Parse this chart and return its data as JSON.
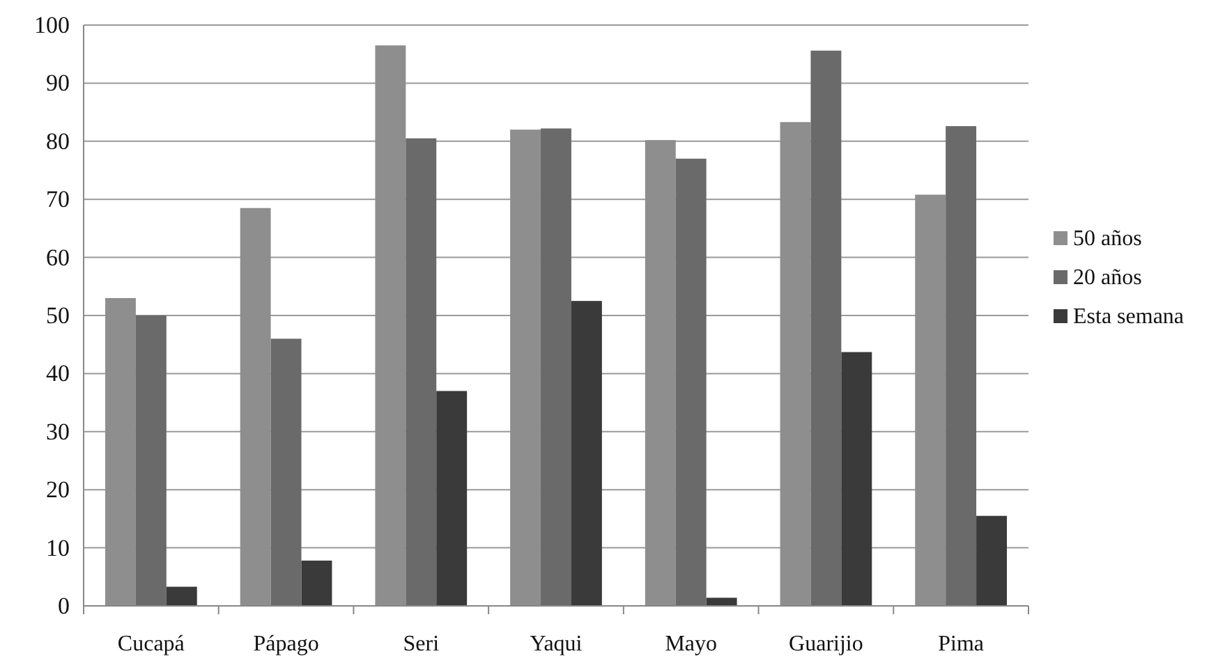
{
  "chart_data": {
    "type": "bar",
    "categories": [
      "Cucapá",
      "Pápago",
      "Seri",
      "Yaqui",
      "Mayo",
      "Guarijio",
      "Pima"
    ],
    "series": [
      {
        "name": "50 años",
        "color": "#8e8e8e",
        "values": [
          53,
          68.5,
          96.5,
          82,
          80.2,
          83.3,
          70.8
        ]
      },
      {
        "name": "20 años",
        "color": "#6a6a6a",
        "values": [
          50,
          46,
          80.5,
          82.2,
          77,
          95.6,
          82.6
        ]
      },
      {
        "name": "Esta semana",
        "color": "#3a3a3a",
        "values": [
          3.3,
          7.8,
          37,
          52.5,
          1.4,
          43.7,
          15.5
        ]
      }
    ],
    "ylim": [
      0,
      100
    ],
    "yticks": [
      0,
      10,
      20,
      30,
      40,
      50,
      60,
      70,
      80,
      90,
      100
    ],
    "grid": "y",
    "legend": "right"
  }
}
